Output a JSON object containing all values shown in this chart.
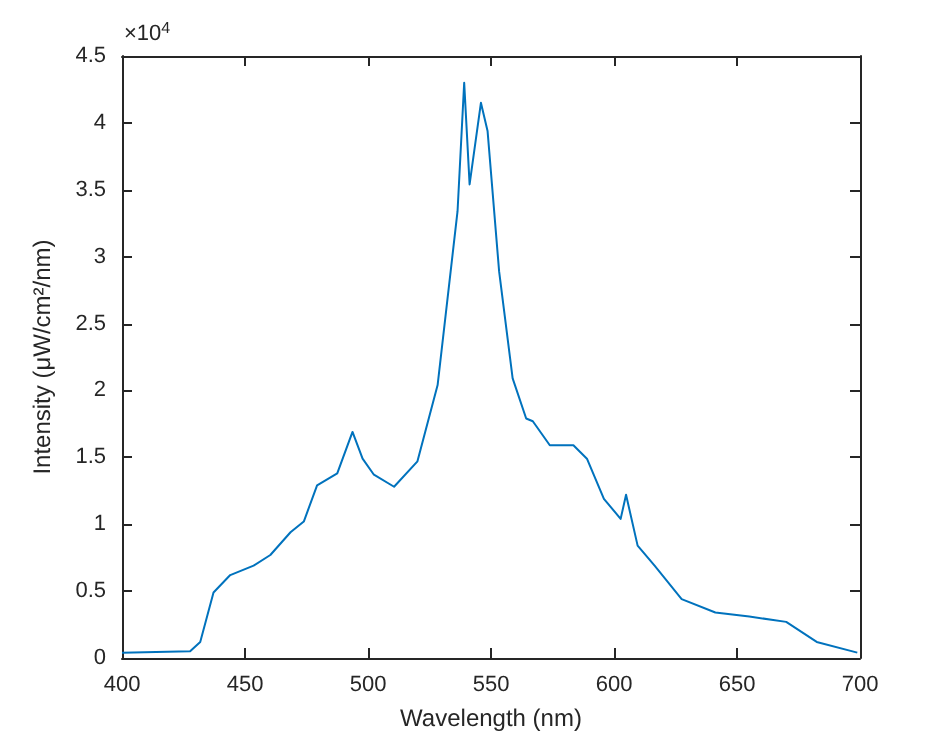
{
  "chart_data": {
    "type": "line",
    "xlabel": "Wavelength (nm)",
    "ylabel": "Intensity (μW/cm²/nm)",
    "annotations": [
      "×10$^{4}$"
    ],
    "x": [
      400,
      427.7,
      431.8,
      437.2,
      444,
      453.5,
      460.3,
      468.5,
      473.9,
      479.3,
      487.5,
      493.7,
      497.8,
      502.4,
      510.6,
      520.1,
      528.3,
      536.4,
      539.1,
      541.3,
      545.9,
      548.6,
      553.3,
      558.8,
      564.3,
      567,
      573.9,
      583.5,
      589,
      595.9,
      602.7,
      604.9,
      609.6,
      616.5,
      627.5,
      641.2,
      655,
      670,
      682.4,
      698.9
    ],
    "series": [
      {
        "color": "#0072bd",
        "values": [
          0.04,
          0.05,
          0.12,
          0.49,
          0.62,
          0.69,
          0.77,
          0.94,
          1.02,
          1.29,
          1.38,
          1.69,
          1.49,
          1.37,
          1.28,
          1.47,
          2.04,
          3.34,
          4.3,
          3.54,
          4.15,
          3.94,
          2.89,
          2.09,
          1.79,
          1.77,
          1.59,
          1.59,
          1.49,
          1.19,
          1.04,
          1.22,
          0.84,
          0.69,
          0.44,
          0.34,
          0.31,
          0.27,
          0.12,
          0.04
        ]
      }
    ],
    "xlim": [
      400,
      700
    ],
    "xticks": [
      400,
      450,
      500,
      550,
      600,
      650,
      700
    ],
    "ylim": [
      0,
      4.5
    ],
    "yticks": [
      0,
      0.5,
      1,
      1.5,
      2,
      2.5,
      3,
      3.5,
      4,
      4.5
    ],
    "marker": "none",
    "line_style": "solid"
  }
}
